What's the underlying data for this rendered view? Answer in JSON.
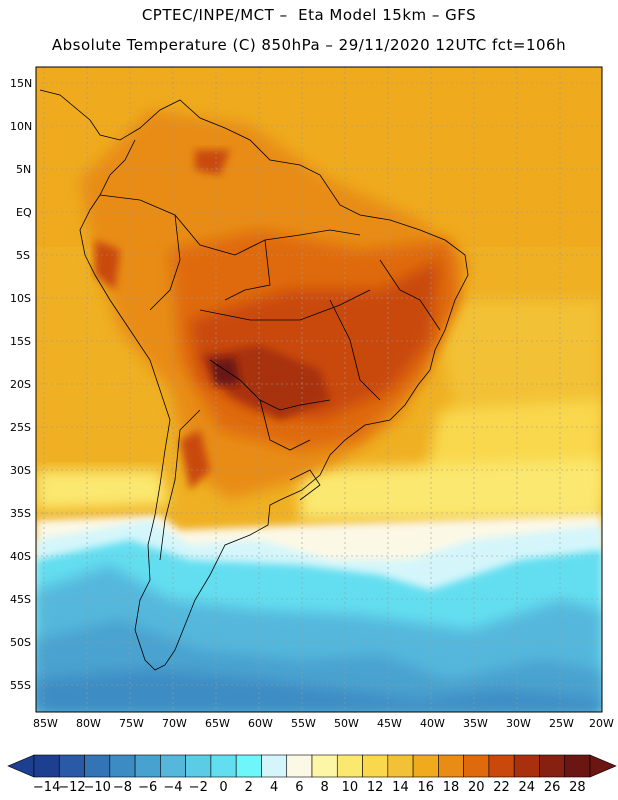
{
  "header": {
    "line1": "CPTEC/INPE/MCT –  Eta Model 15km – GFS",
    "line2": "Absolute Temperature (C) 850hPa – 29/11/2020 12UTC fct=106h"
  },
  "axes": {
    "lat_labels": [
      "15N",
      "10N",
      "5N",
      "EQ",
      "5S",
      "10S",
      "15S",
      "20S",
      "25S",
      "30S",
      "35S",
      "40S",
      "45S",
      "50S",
      "55S"
    ],
    "lon_labels": [
      "85W",
      "80W",
      "75W",
      "70W",
      "65W",
      "60W",
      "55W",
      "50W",
      "45W",
      "40W",
      "35W",
      "30W",
      "25W",
      "20W"
    ]
  },
  "colorbar": {
    "labels": [
      "-14",
      "-12",
      "-10",
      "-8",
      "-6",
      "-4",
      "-2",
      "0",
      "2",
      "4",
      "6",
      "8",
      "10",
      "12",
      "14",
      "16",
      "18",
      "20",
      "22",
      "24",
      "26",
      "28"
    ],
    "colors": [
      "#1e3f8f",
      "#2a5aa6",
      "#3274b6",
      "#3c8cc4",
      "#48a2cf",
      "#55b7dc",
      "#5ccbe6",
      "#63def0",
      "#6ff6fb",
      "#d4f6fb",
      "#fcf8e6",
      "#fdf6a6",
      "#fbe870",
      "#f9d84e",
      "#f3c136",
      "#efaa1e",
      "#e88c16",
      "#df6a0e",
      "#c9490c",
      "#a8300c",
      "#862010",
      "#6b1612"
    ]
  }
}
